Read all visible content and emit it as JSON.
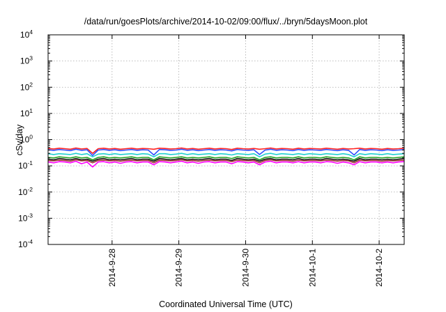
{
  "chart_data": {
    "type": "line",
    "title": "/data/run/goesPlots/archive/2014-10-02/09:00/flux/../bryn/5daysMoon.plot",
    "xlabel": "Coordinated Universal Time (UTC)",
    "ylabel": "cSv/day",
    "yscale": "log",
    "ylim": [
      0.0001,
      10000
    ],
    "xlim": [
      "2014-09-27 01:00",
      "2014-10-02 09:00"
    ],
    "grid": true,
    "legend": "none",
    "y_ticks": [
      {
        "base": "10",
        "exp": "-4",
        "value": 0.0001
      },
      {
        "base": "10",
        "exp": "-3",
        "value": 0.001
      },
      {
        "base": "10",
        "exp": "-2",
        "value": 0.01
      },
      {
        "base": "10",
        "exp": "-1",
        "value": 0.1
      },
      {
        "base": "10",
        "exp": "0",
        "value": 1
      },
      {
        "base": "10",
        "exp": "1",
        "value": 10
      },
      {
        "base": "10",
        "exp": "2",
        "value": 100
      },
      {
        "base": "10",
        "exp": "3",
        "value": 1000
      },
      {
        "base": "10",
        "exp": "4",
        "value": 10000
      }
    ],
    "x_ticks": [
      {
        "label": "2014-9-28",
        "date": "2014-09-28 00:00"
      },
      {
        "label": "2014-9-29",
        "date": "2014-09-29 00:00"
      },
      {
        "label": "2014-9-30",
        "date": "2014-09-30 00:00"
      },
      {
        "label": "2014-10-1",
        "date": "2014-10-01 00:00"
      },
      {
        "label": "2014-10-2",
        "date": "2014-10-02 00:00"
      }
    ],
    "series": [
      {
        "color": "#ff2020",
        "level": 0.45,
        "values": [
          0.46,
          0.44,
          0.47,
          0.45,
          0.43,
          0.48,
          0.44,
          0.46,
          0.3,
          0.45,
          0.47,
          0.44,
          0.46,
          0.43,
          0.45,
          0.47,
          0.44,
          0.46,
          0.45,
          0.43,
          0.47,
          0.46,
          0.44,
          0.45,
          0.48,
          0.44,
          0.46,
          0.43,
          0.45,
          0.47,
          0.44,
          0.46,
          0.45,
          0.42,
          0.47,
          0.45,
          0.44,
          0.46,
          0.43,
          0.45,
          0.48,
          0.44,
          0.46,
          0.45,
          0.43,
          0.47,
          0.44,
          0.46,
          0.45,
          0.44,
          0.47,
          0.45,
          0.43,
          0.46,
          0.44,
          0.45,
          0.47,
          0.44,
          0.46,
          0.45,
          0.43,
          0.46,
          0.44,
          0.45,
          0.47
        ]
      },
      {
        "color": "#3050ff",
        "level": 0.4,
        "values": [
          0.41,
          0.39,
          0.42,
          0.4,
          0.38,
          0.43,
          0.39,
          0.41,
          0.25,
          0.4,
          0.42,
          0.39,
          0.41,
          0.38,
          0.4,
          0.42,
          0.39,
          0.41,
          0.4,
          0.26,
          0.42,
          0.41,
          0.39,
          0.4,
          0.43,
          0.39,
          0.41,
          0.38,
          0.4,
          0.42,
          0.39,
          0.41,
          0.4,
          0.37,
          0.42,
          0.4,
          0.39,
          0.41,
          0.27,
          0.4,
          0.43,
          0.39,
          0.41,
          0.4,
          0.38,
          0.42,
          0.39,
          0.41,
          0.4,
          0.39,
          0.42,
          0.4,
          0.38,
          0.41,
          0.39,
          0.26,
          0.42,
          0.39,
          0.41,
          0.4,
          0.38,
          0.41,
          0.39,
          0.4,
          0.42
        ]
      },
      {
        "color": "#20d0d0",
        "level": 0.28,
        "values": [
          0.29,
          0.27,
          0.29,
          0.28,
          0.27,
          0.3,
          0.27,
          0.29,
          0.22,
          0.28,
          0.29,
          0.27,
          0.29,
          0.27,
          0.28,
          0.29,
          0.27,
          0.29,
          0.28,
          0.22,
          0.29,
          0.29,
          0.27,
          0.28,
          0.3,
          0.27,
          0.29,
          0.27,
          0.28,
          0.29,
          0.27,
          0.29,
          0.28,
          0.26,
          0.29,
          0.28,
          0.27,
          0.29,
          0.22,
          0.28,
          0.3,
          0.27,
          0.29,
          0.28,
          0.27,
          0.29,
          0.27,
          0.29,
          0.28,
          0.27,
          0.29,
          0.28,
          0.27,
          0.29,
          0.27,
          0.22,
          0.29,
          0.27,
          0.29,
          0.28,
          0.27,
          0.29,
          0.27,
          0.28,
          0.29
        ]
      },
      {
        "color": "#20a020",
        "level": 0.21,
        "values": [
          0.21,
          0.2,
          0.22,
          0.21,
          0.2,
          0.22,
          0.2,
          0.21,
          0.17,
          0.21,
          0.22,
          0.2,
          0.21,
          0.2,
          0.21,
          0.22,
          0.2,
          0.21,
          0.21,
          0.17,
          0.22,
          0.21,
          0.2,
          0.21,
          0.22,
          0.2,
          0.21,
          0.2,
          0.21,
          0.22,
          0.2,
          0.21,
          0.21,
          0.19,
          0.22,
          0.21,
          0.2,
          0.21,
          0.17,
          0.21,
          0.22,
          0.2,
          0.21,
          0.21,
          0.2,
          0.22,
          0.2,
          0.21,
          0.21,
          0.2,
          0.22,
          0.21,
          0.2,
          0.21,
          0.2,
          0.17,
          0.22,
          0.2,
          0.21,
          0.21,
          0.2,
          0.21,
          0.2,
          0.21,
          0.22
        ]
      },
      {
        "color": "#101010",
        "level": 0.18,
        "values": [
          0.18,
          0.17,
          0.19,
          0.18,
          0.17,
          0.19,
          0.17,
          0.18,
          0.15,
          0.18,
          0.19,
          0.17,
          0.18,
          0.17,
          0.18,
          0.19,
          0.17,
          0.18,
          0.18,
          0.15,
          0.19,
          0.18,
          0.17,
          0.18,
          0.19,
          0.17,
          0.18,
          0.17,
          0.18,
          0.19,
          0.17,
          0.18,
          0.18,
          0.16,
          0.19,
          0.18,
          0.17,
          0.18,
          0.15,
          0.18,
          0.19,
          0.17,
          0.18,
          0.18,
          0.17,
          0.19,
          0.17,
          0.18,
          0.18,
          0.17,
          0.19,
          0.18,
          0.17,
          0.18,
          0.17,
          0.15,
          0.19,
          0.17,
          0.18,
          0.18,
          0.17,
          0.18,
          0.17,
          0.18,
          0.19
        ]
      },
      {
        "color": "#a03030",
        "level": 0.16,
        "values": [
          0.16,
          0.155,
          0.165,
          0.16,
          0.15,
          0.17,
          0.155,
          0.16,
          0.13,
          0.16,
          0.165,
          0.155,
          0.16,
          0.15,
          0.16,
          0.165,
          0.155,
          0.16,
          0.16,
          0.13,
          0.165,
          0.16,
          0.155,
          0.16,
          0.17,
          0.155,
          0.16,
          0.15,
          0.16,
          0.165,
          0.155,
          0.16,
          0.16,
          0.145,
          0.165,
          0.16,
          0.155,
          0.16,
          0.13,
          0.16,
          0.17,
          0.155,
          0.16,
          0.16,
          0.15,
          0.165,
          0.155,
          0.16,
          0.16,
          0.155,
          0.165,
          0.16,
          0.15,
          0.16,
          0.155,
          0.13,
          0.165,
          0.155,
          0.16,
          0.16,
          0.15,
          0.16,
          0.155,
          0.16,
          0.165
        ]
      },
      {
        "color": "#ff00ff",
        "level": 0.14,
        "values": [
          0.14,
          0.13,
          0.145,
          0.14,
          0.13,
          0.15,
          0.12,
          0.14,
          0.09,
          0.14,
          0.145,
          0.13,
          0.14,
          0.125,
          0.14,
          0.145,
          0.13,
          0.14,
          0.14,
          0.11,
          0.145,
          0.14,
          0.13,
          0.14,
          0.15,
          0.13,
          0.14,
          0.125,
          0.14,
          0.145,
          0.13,
          0.14,
          0.14,
          0.12,
          0.145,
          0.14,
          0.13,
          0.14,
          0.11,
          0.14,
          0.15,
          0.13,
          0.14,
          0.14,
          0.13,
          0.145,
          0.13,
          0.14,
          0.14,
          0.13,
          0.145,
          0.14,
          0.125,
          0.14,
          0.13,
          0.11,
          0.145,
          0.13,
          0.14,
          0.14,
          0.13,
          0.14,
          0.13,
          0.14,
          0.145
        ]
      }
    ]
  }
}
